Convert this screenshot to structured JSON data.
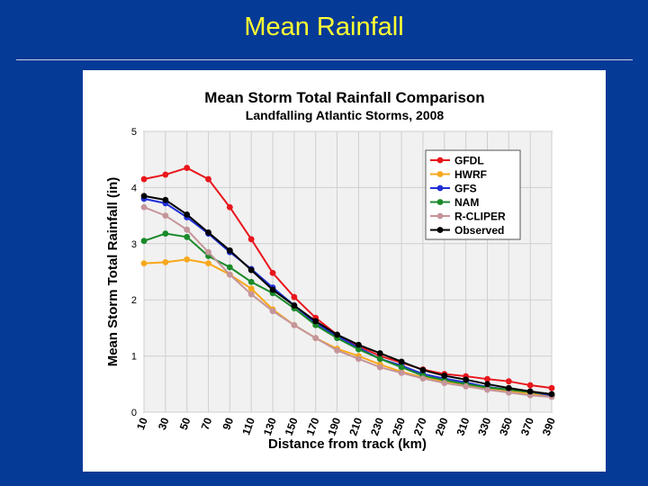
{
  "slide": {
    "title": "Mean Rainfall"
  },
  "chart_data": {
    "type": "line",
    "title": "Mean Storm Total Rainfall Comparison",
    "subtitle": "Landfalling Atlantic Storms, 2008",
    "xlabel": "Distance from track (km)",
    "ylabel": "Mean Storm Total Rainfall (in)",
    "ylim": [
      0,
      5
    ],
    "xlim": [
      10,
      390
    ],
    "x": [
      10,
      30,
      50,
      70,
      90,
      110,
      130,
      150,
      170,
      190,
      210,
      230,
      250,
      270,
      290,
      310,
      330,
      350,
      370,
      390
    ],
    "x_tick_labels": [
      "10",
      "30",
      "50",
      "70",
      "90",
      "110",
      "130",
      "150",
      "170",
      "190",
      "210",
      "230",
      "250",
      "270",
      "290",
      "310",
      "330",
      "350",
      "370",
      "390"
    ],
    "y_ticks": [
      0,
      1,
      2,
      3,
      4,
      5
    ],
    "y_tick_labels": [
      "0",
      "1",
      "2",
      "3",
      "4",
      "5"
    ],
    "grid": true,
    "legend_position": "top-right",
    "series": [
      {
        "name": "GFDL",
        "color": "#e8161c",
        "values": [
          4.15,
          4.23,
          4.35,
          4.15,
          3.65,
          3.08,
          2.48,
          2.05,
          1.68,
          1.38,
          1.18,
          1.0,
          0.88,
          0.76,
          0.68,
          0.64,
          0.59,
          0.55,
          0.48,
          0.43
        ]
      },
      {
        "name": "HWRF",
        "color": "#f7a81b",
        "values": [
          2.65,
          2.67,
          2.72,
          2.65,
          2.45,
          2.2,
          1.83,
          1.55,
          1.32,
          1.13,
          1.0,
          0.85,
          0.72,
          0.62,
          0.55,
          0.48,
          0.42,
          0.38,
          0.33,
          0.28
        ]
      },
      {
        "name": "GFS",
        "color": "#1f2fd6",
        "values": [
          3.8,
          3.72,
          3.47,
          3.18,
          2.85,
          2.55,
          2.22,
          1.9,
          1.58,
          1.35,
          1.15,
          0.95,
          0.83,
          0.68,
          0.6,
          0.53,
          0.45,
          0.4,
          0.36,
          0.3
        ]
      },
      {
        "name": "NAM",
        "color": "#1a8a2a",
        "values": [
          3.05,
          3.18,
          3.12,
          2.78,
          2.58,
          2.32,
          2.12,
          1.85,
          1.55,
          1.32,
          1.12,
          0.95,
          0.8,
          0.65,
          0.57,
          0.5,
          0.44,
          0.4,
          0.36,
          0.32
        ]
      },
      {
        "name": "R-CLIPER",
        "color": "#c4959a",
        "values": [
          3.65,
          3.5,
          3.25,
          2.85,
          2.45,
          2.1,
          1.8,
          1.55,
          1.32,
          1.1,
          0.95,
          0.8,
          0.7,
          0.6,
          0.52,
          0.46,
          0.4,
          0.35,
          0.3,
          0.27
        ]
      },
      {
        "name": "Observed",
        "color": "#000000",
        "values": [
          3.85,
          3.78,
          3.52,
          3.2,
          2.88,
          2.53,
          2.18,
          1.9,
          1.62,
          1.38,
          1.2,
          1.05,
          0.9,
          0.75,
          0.65,
          0.58,
          0.5,
          0.43,
          0.37,
          0.32
        ]
      }
    ]
  }
}
